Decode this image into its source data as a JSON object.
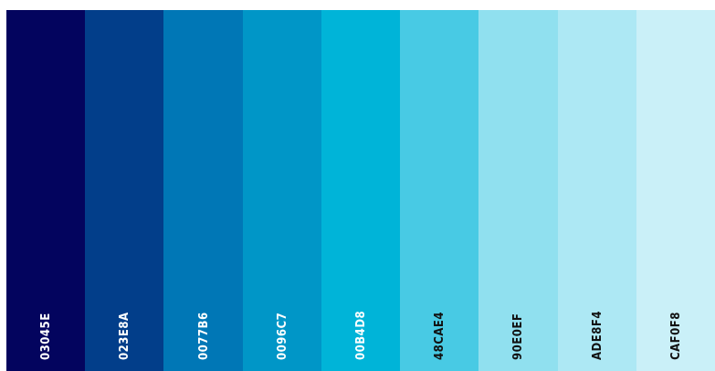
{
  "palette": {
    "swatches": [
      {
        "label": "03045E",
        "color": "#03045E",
        "text_color": "#ffffff"
      },
      {
        "label": "023E8A",
        "color": "#023E8A",
        "text_color": "#ffffff"
      },
      {
        "label": "0077B6",
        "color": "#0077B6",
        "text_color": "#ffffff"
      },
      {
        "label": "0096C7",
        "color": "#0096C7",
        "text_color": "#ffffff"
      },
      {
        "label": "00B4D8",
        "color": "#00B4D8",
        "text_color": "#ffffff"
      },
      {
        "label": "48CAE4",
        "color": "#48CAE4",
        "text_color": "#111111"
      },
      {
        "label": "90E0EF",
        "color": "#90E0EF",
        "text_color": "#111111"
      },
      {
        "label": "ADE8F4",
        "color": "#ADE8F4",
        "text_color": "#111111"
      },
      {
        "label": "CAF0F8",
        "color": "#CAF0F8",
        "text_color": "#111111"
      }
    ]
  }
}
